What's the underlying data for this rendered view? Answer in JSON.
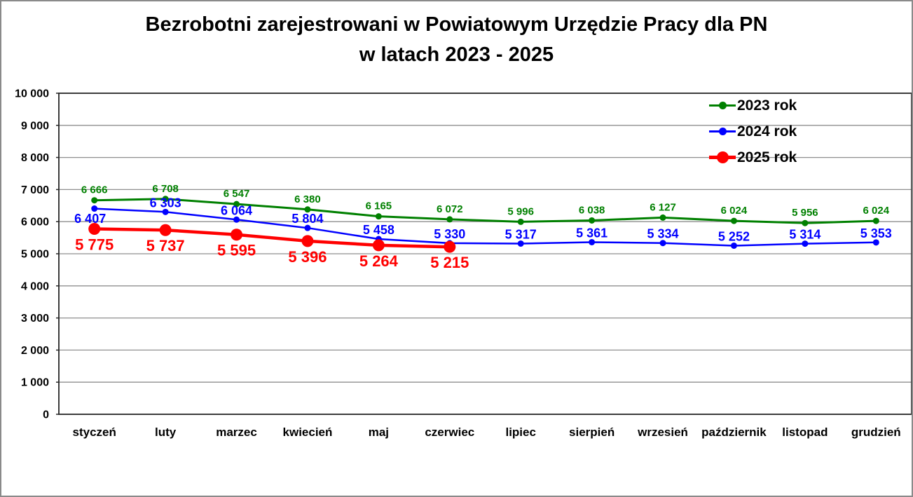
{
  "title": {
    "line1": "Bezrobotni zarejestrowani w Powiatowym Urzędzie Pracy dla PN",
    "line2": "w latach 2023 - 2025"
  },
  "colors": {
    "grid": "#8f8f8f",
    "axis": "#262626",
    "text": "#000000",
    "background": "#ffffff",
    "frame_border": "#8a8a8a"
  },
  "chart_data": {
    "type": "line",
    "title": "Bezrobotni zarejestrowani w Powiatowym Urzędzie Pracy dla PN w latach 2023 - 2025",
    "categories": [
      "styczeń",
      "luty",
      "marzec",
      "kwiecień",
      "maj",
      "czerwiec",
      "lipiec",
      "sierpień",
      "wrzesień",
      "październik",
      "listopad",
      "grudzień"
    ],
    "series": [
      {
        "name": "2023 rok",
        "color": "#008000",
        "values": [
          6666,
          6708,
          6547,
          6380,
          6165,
          6072,
          5996,
          6038,
          6127,
          6024,
          5956,
          6024
        ],
        "labels": [
          "6 666",
          "6 708",
          "6 547",
          "6 380",
          "6 165",
          "6 072",
          "5 996",
          "6 038",
          "6 127",
          "6 024",
          "5 956",
          "6 024"
        ]
      },
      {
        "name": "2024 rok",
        "color": "#0000ff",
        "values": [
          6407,
          6303,
          6064,
          5804,
          5458,
          5330,
          5317,
          5361,
          5334,
          5252,
          5314,
          5353
        ],
        "labels": [
          "6 407",
          "6 303",
          "6 064",
          "5 804",
          "5 458",
          "5 330",
          "5 317",
          "5 361",
          "5 334",
          "5 252",
          "5 314",
          "5 353"
        ]
      },
      {
        "name": "2025 rok",
        "color": "#ff0000",
        "values": [
          5775,
          5737,
          5595,
          5396,
          5264,
          5215
        ],
        "labels": [
          "5 775",
          "5 737",
          "5 595",
          "5 396",
          "5 264",
          "5 215"
        ]
      }
    ],
    "y_axis": {
      "min": 0,
      "max": 10000,
      "step": 1000,
      "tick_labels": [
        "0",
        "1 000",
        "2 000",
        "3 000",
        "4 000",
        "5 000",
        "6 000",
        "7 000",
        "8 000",
        "9 000",
        "10 000"
      ]
    },
    "x_axis": {
      "label": ""
    },
    "grid": true,
    "legend": {
      "position": "top-right"
    }
  }
}
